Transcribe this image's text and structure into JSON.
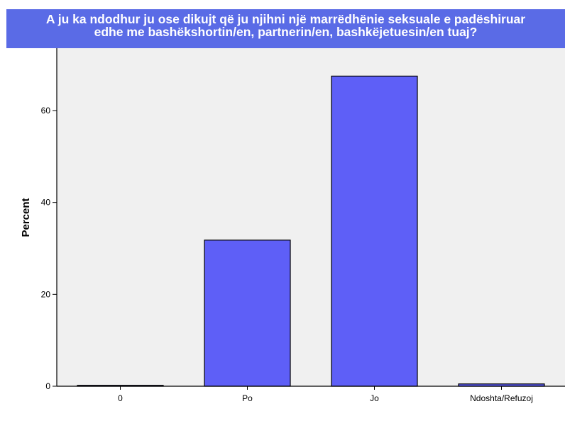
{
  "chart_data": {
    "type": "bar",
    "title_lines": [
      "A ju ka ndodhur ju ose dikujt që ju njihni një marrëdhënie seksuale e padëshiruar",
      "edhe me bashëkshortin/en, partnerin/en, bashkëjetuesin/en tuaj?"
    ],
    "categories": [
      "0",
      "Po",
      "Jo",
      "Ndoshta/Refuzoj"
    ],
    "values": [
      0.2,
      31.8,
      67.5,
      0.5
    ],
    "xlabel": "",
    "ylabel": "Percent",
    "ylim": [
      0,
      70
    ],
    "yticks": [
      0,
      20,
      40,
      60
    ],
    "grid": false,
    "colors": {
      "bar": "#5e5ff7",
      "bar_stroke": "#000000",
      "plot_bg": "#f0f0f0",
      "title_bg": "#5a6be6"
    }
  }
}
